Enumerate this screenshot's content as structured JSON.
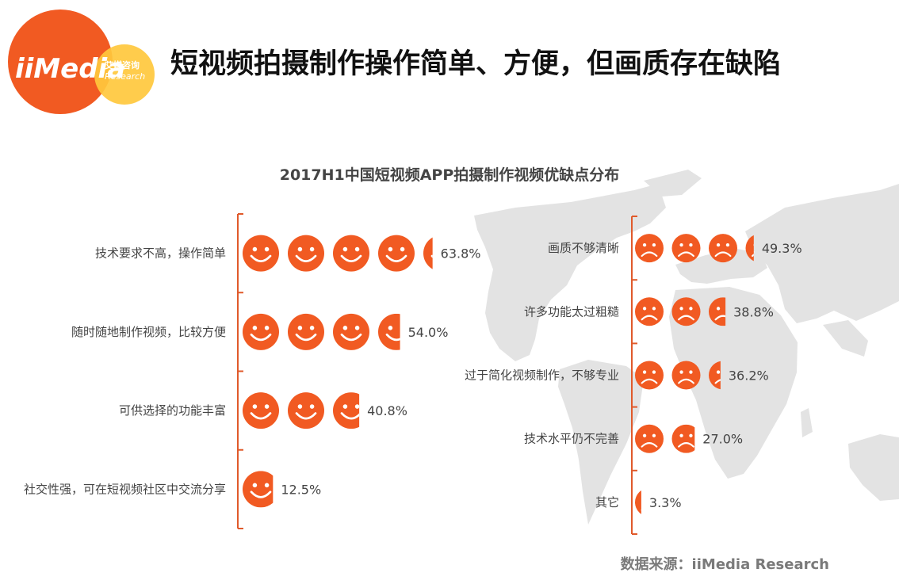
{
  "logo": {
    "brand": "iiMedia",
    "cn": "艾媒咨询",
    "en": "Research"
  },
  "page_title": "短视频拍摄制作操作简单、方便，但画质存在缺陷",
  "source": "数据来源：iiMedia Research",
  "colors": {
    "accent": "#f15a22",
    "logo_yellow": "#ffc83d",
    "map": "#e3e3e3",
    "axis": "#e05a2b"
  },
  "chart_data": {
    "type": "pictograph-bar",
    "title": "2017H1中国短视频APP拍摄制作视频优缺点分布",
    "unit": "%",
    "icon_value": 15,
    "groups": [
      {
        "name": "优点",
        "icon": "smile",
        "categories": [
          "技术要求不高，操作简单",
          "随时随地制作视频，比较方便",
          "可供选择的功能丰富",
          "社交性强，可在短视频社区中交流分享"
        ],
        "values": [
          63.8,
          54.0,
          40.8,
          12.5
        ],
        "labels": [
          "63.8%",
          "54.0%",
          "40.8%",
          "12.5%"
        ]
      },
      {
        "name": "缺点",
        "icon": "frown",
        "categories": [
          "画质不够清晰",
          "许多功能太过粗糙",
          "过于简化视频制作，不够专业",
          "技术水平仍不完善",
          "其它"
        ],
        "values": [
          49.3,
          38.8,
          36.2,
          27.0,
          3.3
        ],
        "labels": [
          "49.3%",
          "38.8%",
          "36.2%",
          "27.0%",
          "3.3%"
        ]
      }
    ]
  }
}
